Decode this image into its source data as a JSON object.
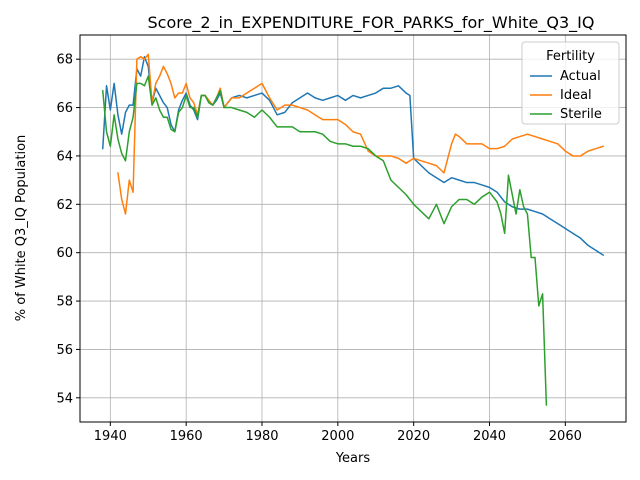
{
  "chart_data": {
    "type": "line",
    "title": "Score_2_in_EXPENDITURE_FOR_PARKS_for_White_Q3_IQ",
    "xlabel": "Years",
    "ylabel": "% of White Q3_IQ Population",
    "xlim": [
      1932,
      2076
    ],
    "ylim": [
      53,
      69
    ],
    "xticks": [
      1940,
      1960,
      1980,
      2000,
      2020,
      2040,
      2060
    ],
    "yticks": [
      54,
      56,
      58,
      60,
      62,
      64,
      66,
      68
    ],
    "grid": true,
    "legend": {
      "title": "Fertility",
      "placement": "top-right"
    },
    "series": [
      {
        "name": "Actual",
        "color": "#1f77b4",
        "points": [
          [
            1938,
            64.3
          ],
          [
            1939,
            66.9
          ],
          [
            1940,
            65.9
          ],
          [
            1941,
            67.0
          ],
          [
            1942,
            65.7
          ],
          [
            1943,
            64.9
          ],
          [
            1944,
            65.8
          ],
          [
            1945,
            66.1
          ],
          [
            1946,
            66.1
          ],
          [
            1947,
            67.6
          ],
          [
            1948,
            67.3
          ],
          [
            1949,
            68.1
          ],
          [
            1950,
            67.7
          ],
          [
            1951,
            66.2
          ],
          [
            1952,
            66.8
          ],
          [
            1953,
            66.5
          ],
          [
            1954,
            66.2
          ],
          [
            1955,
            66.0
          ],
          [
            1956,
            65.3
          ],
          [
            1957,
            65.0
          ],
          [
            1958,
            65.9
          ],
          [
            1959,
            66.3
          ],
          [
            1960,
            66.6
          ],
          [
            1961,
            66.1
          ],
          [
            1962,
            65.9
          ],
          [
            1963,
            65.5
          ],
          [
            1964,
            66.5
          ],
          [
            1965,
            66.5
          ],
          [
            1966,
            66.2
          ],
          [
            1967,
            66.1
          ],
          [
            1968,
            66.3
          ],
          [
            1969,
            66.6
          ],
          [
            1970,
            66.0
          ],
          [
            1972,
            66.4
          ],
          [
            1974,
            66.5
          ],
          [
            1976,
            66.4
          ],
          [
            1978,
            66.5
          ],
          [
            1980,
            66.6
          ],
          [
            1982,
            66.3
          ],
          [
            1984,
            65.7
          ],
          [
            1986,
            65.8
          ],
          [
            1988,
            66.2
          ],
          [
            1990,
            66.4
          ],
          [
            1992,
            66.6
          ],
          [
            1994,
            66.4
          ],
          [
            1996,
            66.3
          ],
          [
            1998,
            66.4
          ],
          [
            2000,
            66.5
          ],
          [
            2002,
            66.3
          ],
          [
            2004,
            66.5
          ],
          [
            2006,
            66.4
          ],
          [
            2008,
            66.5
          ],
          [
            2010,
            66.6
          ],
          [
            2012,
            66.8
          ],
          [
            2014,
            66.8
          ],
          [
            2016,
            66.9
          ],
          [
            2018,
            66.6
          ],
          [
            2019,
            66.5
          ],
          [
            2020,
            63.9
          ],
          [
            2022,
            63.6
          ],
          [
            2024,
            63.3
          ],
          [
            2026,
            63.1
          ],
          [
            2028,
            62.9
          ],
          [
            2030,
            63.1
          ],
          [
            2032,
            63.0
          ],
          [
            2034,
            62.9
          ],
          [
            2036,
            62.9
          ],
          [
            2038,
            62.8
          ],
          [
            2040,
            62.7
          ],
          [
            2042,
            62.5
          ],
          [
            2044,
            62.1
          ],
          [
            2046,
            61.9
          ],
          [
            2048,
            61.8
          ],
          [
            2050,
            61.8
          ],
          [
            2052,
            61.7
          ],
          [
            2054,
            61.6
          ],
          [
            2056,
            61.4
          ],
          [
            2058,
            61.2
          ],
          [
            2060,
            61.0
          ],
          [
            2062,
            60.8
          ],
          [
            2064,
            60.6
          ],
          [
            2066,
            60.3
          ],
          [
            2068,
            60.1
          ],
          [
            2070,
            59.9
          ]
        ]
      },
      {
        "name": "Ideal",
        "color": "#ff7f0e",
        "points": [
          [
            1942,
            63.3
          ],
          [
            1943,
            62.2
          ],
          [
            1944,
            61.6
          ],
          [
            1945,
            63.0
          ],
          [
            1946,
            62.5
          ],
          [
            1947,
            68.0
          ],
          [
            1948,
            68.1
          ],
          [
            1949,
            68.0
          ],
          [
            1950,
            68.2
          ],
          [
            1951,
            66.2
          ],
          [
            1952,
            67.0
          ],
          [
            1953,
            67.3
          ],
          [
            1954,
            67.7
          ],
          [
            1955,
            67.4
          ],
          [
            1956,
            67.0
          ],
          [
            1957,
            66.4
          ],
          [
            1958,
            66.6
          ],
          [
            1959,
            66.6
          ],
          [
            1960,
            67.0
          ],
          [
            1961,
            66.4
          ],
          [
            1962,
            66.2
          ],
          [
            1963,
            65.7
          ],
          [
            1964,
            66.5
          ],
          [
            1965,
            66.5
          ],
          [
            1966,
            66.3
          ],
          [
            1967,
            66.1
          ],
          [
            1968,
            66.4
          ],
          [
            1969,
            66.8
          ],
          [
            1970,
            66.0
          ],
          [
            1972,
            66.4
          ],
          [
            1974,
            66.4
          ],
          [
            1976,
            66.6
          ],
          [
            1978,
            66.8
          ],
          [
            1980,
            67.0
          ],
          [
            1982,
            66.4
          ],
          [
            1984,
            65.9
          ],
          [
            1986,
            66.1
          ],
          [
            1988,
            66.1
          ],
          [
            1990,
            66.0
          ],
          [
            1992,
            65.9
          ],
          [
            1994,
            65.7
          ],
          [
            1996,
            65.5
          ],
          [
            1998,
            65.5
          ],
          [
            2000,
            65.5
          ],
          [
            2002,
            65.3
          ],
          [
            2004,
            65.0
          ],
          [
            2006,
            64.9
          ],
          [
            2008,
            64.2
          ],
          [
            2010,
            64.0
          ],
          [
            2012,
            64.0
          ],
          [
            2014,
            64.0
          ],
          [
            2016,
            63.9
          ],
          [
            2018,
            63.7
          ],
          [
            2020,
            63.9
          ],
          [
            2022,
            63.8
          ],
          [
            2024,
            63.7
          ],
          [
            2026,
            63.6
          ],
          [
            2028,
            63.3
          ],
          [
            2030,
            64.5
          ],
          [
            2031,
            64.9
          ],
          [
            2032,
            64.8
          ],
          [
            2034,
            64.5
          ],
          [
            2036,
            64.5
          ],
          [
            2038,
            64.5
          ],
          [
            2040,
            64.3
          ],
          [
            2042,
            64.3
          ],
          [
            2044,
            64.4
          ],
          [
            2046,
            64.7
          ],
          [
            2048,
            64.8
          ],
          [
            2050,
            64.9
          ],
          [
            2052,
            64.8
          ],
          [
            2054,
            64.7
          ],
          [
            2056,
            64.6
          ],
          [
            2058,
            64.5
          ],
          [
            2060,
            64.2
          ],
          [
            2062,
            64.0
          ],
          [
            2064,
            64.0
          ],
          [
            2066,
            64.2
          ],
          [
            2068,
            64.3
          ],
          [
            2070,
            64.4
          ]
        ]
      },
      {
        "name": "Sterile",
        "color": "#2ca02c",
        "points": [
          [
            1938,
            66.7
          ],
          [
            1939,
            65.0
          ],
          [
            1940,
            64.4
          ],
          [
            1941,
            65.7
          ],
          [
            1942,
            64.7
          ],
          [
            1943,
            64.1
          ],
          [
            1944,
            63.8
          ],
          [
            1945,
            65.0
          ],
          [
            1946,
            65.6
          ],
          [
            1947,
            67.0
          ],
          [
            1948,
            67.0
          ],
          [
            1949,
            66.9
          ],
          [
            1950,
            67.3
          ],
          [
            1951,
            66.1
          ],
          [
            1952,
            66.4
          ],
          [
            1953,
            65.9
          ],
          [
            1954,
            65.6
          ],
          [
            1955,
            65.6
          ],
          [
            1956,
            65.1
          ],
          [
            1957,
            65.0
          ],
          [
            1958,
            65.8
          ],
          [
            1959,
            66.0
          ],
          [
            1960,
            66.5
          ],
          [
            1961,
            66.0
          ],
          [
            1962,
            66.0
          ],
          [
            1963,
            65.6
          ],
          [
            1964,
            66.5
          ],
          [
            1965,
            66.5
          ],
          [
            1966,
            66.2
          ],
          [
            1967,
            66.1
          ],
          [
            1968,
            66.4
          ],
          [
            1969,
            66.7
          ],
          [
            1970,
            66.0
          ],
          [
            1972,
            66.0
          ],
          [
            1974,
            65.9
          ],
          [
            1976,
            65.8
          ],
          [
            1978,
            65.6
          ],
          [
            1980,
            65.9
          ],
          [
            1982,
            65.6
          ],
          [
            1984,
            65.2
          ],
          [
            1986,
            65.2
          ],
          [
            1988,
            65.2
          ],
          [
            1990,
            65.0
          ],
          [
            1992,
            65.0
          ],
          [
            1994,
            65.0
          ],
          [
            1996,
            64.9
          ],
          [
            1998,
            64.6
          ],
          [
            2000,
            64.5
          ],
          [
            2002,
            64.5
          ],
          [
            2004,
            64.4
          ],
          [
            2006,
            64.4
          ],
          [
            2008,
            64.3
          ],
          [
            2010,
            64.0
          ],
          [
            2012,
            63.8
          ],
          [
            2014,
            63.0
          ],
          [
            2016,
            62.7
          ],
          [
            2018,
            62.4
          ],
          [
            2020,
            62.0
          ],
          [
            2022,
            61.7
          ],
          [
            2024,
            61.4
          ],
          [
            2026,
            62.0
          ],
          [
            2028,
            61.2
          ],
          [
            2030,
            61.9
          ],
          [
            2032,
            62.2
          ],
          [
            2034,
            62.2
          ],
          [
            2036,
            62.0
          ],
          [
            2038,
            62.3
          ],
          [
            2040,
            62.5
          ],
          [
            2042,
            62.1
          ],
          [
            2043,
            61.6
          ],
          [
            2044,
            60.8
          ],
          [
            2045,
            63.2
          ],
          [
            2046,
            62.4
          ],
          [
            2047,
            61.6
          ],
          [
            2048,
            62.6
          ],
          [
            2049,
            61.9
          ],
          [
            2050,
            61.6
          ],
          [
            2051,
            59.8
          ],
          [
            2052,
            59.8
          ],
          [
            2053,
            57.8
          ],
          [
            2054,
            58.3
          ],
          [
            2055,
            53.7
          ]
        ]
      }
    ]
  }
}
